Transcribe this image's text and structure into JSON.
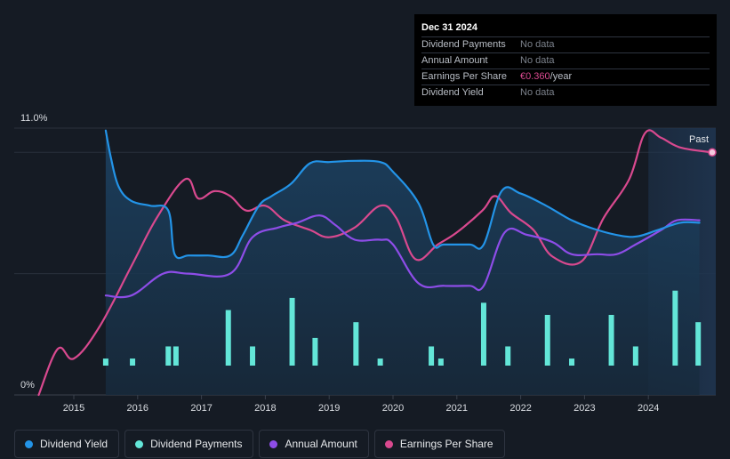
{
  "tooltip": {
    "date": "Dec 31 2024",
    "rows": [
      {
        "label": "Dividend Payments",
        "value": "No data",
        "unit": ""
      },
      {
        "label": "Annual Amount",
        "value": "No data",
        "unit": ""
      },
      {
        "label": "Earnings Per Share",
        "value": "€0.360",
        "unit": "/year"
      },
      {
        "label": "Dividend Yield",
        "value": "No data",
        "unit": ""
      }
    ]
  },
  "legend": [
    {
      "label": "Dividend Yield",
      "color": "#2394e8"
    },
    {
      "label": "Dividend Payments",
      "color": "#63e6d8"
    },
    {
      "label": "Annual Amount",
      "color": "#8e4de8"
    },
    {
      "label": "Earnings Per Share",
      "color": "#d9498f"
    }
  ],
  "chart_data": {
    "type": "line",
    "title": "",
    "ylabel_top": "11.0%",
    "ylabel_bottom": "0%",
    "past_label": "Past",
    "xlim": [
      2014.5,
      2025.0
    ],
    "ylim": [
      0,
      11.0
    ],
    "x_ticks": [
      2015,
      2016,
      2017,
      2018,
      2019,
      2020,
      2021,
      2022,
      2023,
      2024
    ],
    "series": [
      {
        "name": "Dividend Yield",
        "color": "#2394e8",
        "area": true,
        "points": [
          [
            2015.5,
            10.9
          ],
          [
            2015.58,
            9.8
          ],
          [
            2015.7,
            8.6
          ],
          [
            2015.9,
            8.0
          ],
          [
            2016.2,
            7.8
          ],
          [
            2016.48,
            7.6
          ],
          [
            2016.58,
            5.8
          ],
          [
            2016.8,
            5.75
          ],
          [
            2017.1,
            5.75
          ],
          [
            2017.45,
            5.75
          ],
          [
            2017.65,
            6.6
          ],
          [
            2017.9,
            7.8
          ],
          [
            2018.1,
            8.2
          ],
          [
            2018.4,
            8.7
          ],
          [
            2018.7,
            9.55
          ],
          [
            2019.0,
            9.6
          ],
          [
            2019.4,
            9.65
          ],
          [
            2019.8,
            9.6
          ],
          [
            2020.0,
            9.2
          ],
          [
            2020.4,
            7.9
          ],
          [
            2020.63,
            6.2
          ],
          [
            2020.8,
            6.2
          ],
          [
            2021.2,
            6.2
          ],
          [
            2021.42,
            6.2
          ],
          [
            2021.7,
            8.4
          ],
          [
            2022.0,
            8.3
          ],
          [
            2022.4,
            7.8
          ],
          [
            2022.8,
            7.2
          ],
          [
            2023.2,
            6.8
          ],
          [
            2023.6,
            6.55
          ],
          [
            2023.85,
            6.55
          ],
          [
            2024.15,
            6.8
          ],
          [
            2024.5,
            7.1
          ],
          [
            2024.8,
            7.1
          ]
        ]
      },
      {
        "name": "Annual Amount",
        "color": "#8e4de8",
        "area": false,
        "points": [
          [
            2015.5,
            4.1
          ],
          [
            2015.9,
            4.1
          ],
          [
            2016.4,
            5.0
          ],
          [
            2016.8,
            5.0
          ],
          [
            2017.45,
            5.0
          ],
          [
            2017.8,
            6.5
          ],
          [
            2018.2,
            6.9
          ],
          [
            2018.5,
            7.1
          ],
          [
            2018.85,
            7.4
          ],
          [
            2019.1,
            7.0
          ],
          [
            2019.4,
            6.4
          ],
          [
            2019.8,
            6.4
          ],
          [
            2020.0,
            6.2
          ],
          [
            2020.4,
            4.6
          ],
          [
            2020.8,
            4.5
          ],
          [
            2021.2,
            4.5
          ],
          [
            2021.42,
            4.5
          ],
          [
            2021.75,
            6.7
          ],
          [
            2022.1,
            6.6
          ],
          [
            2022.5,
            6.3
          ],
          [
            2022.8,
            5.8
          ],
          [
            2023.2,
            5.8
          ],
          [
            2023.5,
            5.8
          ],
          [
            2023.8,
            6.2
          ],
          [
            2024.2,
            6.8
          ],
          [
            2024.45,
            7.2
          ],
          [
            2024.8,
            7.2
          ]
        ]
      },
      {
        "name": "Earnings Per Share",
        "color": "#d9498f",
        "area": false,
        "points": [
          [
            2014.45,
            0.0
          ],
          [
            2014.75,
            1.9
          ],
          [
            2015.0,
            1.5
          ],
          [
            2015.4,
            2.8
          ],
          [
            2015.9,
            5.3
          ],
          [
            2016.3,
            7.3
          ],
          [
            2016.75,
            8.9
          ],
          [
            2016.95,
            8.1
          ],
          [
            2017.2,
            8.4
          ],
          [
            2017.45,
            8.2
          ],
          [
            2017.7,
            7.6
          ],
          [
            2018.0,
            7.8
          ],
          [
            2018.3,
            7.2
          ],
          [
            2018.7,
            6.8
          ],
          [
            2019.0,
            6.5
          ],
          [
            2019.4,
            6.9
          ],
          [
            2019.8,
            7.8
          ],
          [
            2020.05,
            7.3
          ],
          [
            2020.35,
            5.6
          ],
          [
            2020.7,
            6.2
          ],
          [
            2021.0,
            6.7
          ],
          [
            2021.4,
            7.6
          ],
          [
            2021.6,
            8.2
          ],
          [
            2021.85,
            7.5
          ],
          [
            2022.2,
            6.8
          ],
          [
            2022.5,
            5.7
          ],
          [
            2022.95,
            5.5
          ],
          [
            2023.3,
            7.3
          ],
          [
            2023.7,
            8.9
          ],
          [
            2023.95,
            10.8
          ],
          [
            2024.2,
            10.6
          ],
          [
            2024.5,
            10.2
          ],
          [
            2025.0,
            10.0
          ]
        ]
      }
    ],
    "bars": {
      "name": "Dividend Payments",
      "color": "#63e6d8",
      "items": [
        [
          2015.5,
          1.5
        ],
        [
          2015.92,
          1.5
        ],
        [
          2016.48,
          2.0
        ],
        [
          2016.6,
          2.0
        ],
        [
          2017.42,
          3.5
        ],
        [
          2017.8,
          2.0
        ],
        [
          2018.42,
          4.0
        ],
        [
          2018.78,
          2.35
        ],
        [
          2019.42,
          3.0
        ],
        [
          2019.8,
          1.5
        ],
        [
          2020.6,
          2.0
        ],
        [
          2020.75,
          1.5
        ],
        [
          2021.42,
          3.8
        ],
        [
          2021.8,
          2.0
        ],
        [
          2022.42,
          3.3
        ],
        [
          2022.8,
          1.5
        ],
        [
          2023.42,
          3.3
        ],
        [
          2023.8,
          2.0
        ],
        [
          2024.42,
          4.3
        ],
        [
          2024.78,
          3.0
        ]
      ]
    },
    "forecast_shade_start": 2024.0,
    "highlight_point": {
      "series": "Earnings Per Share",
      "x": 2025.0,
      "y": 10.0
    }
  }
}
